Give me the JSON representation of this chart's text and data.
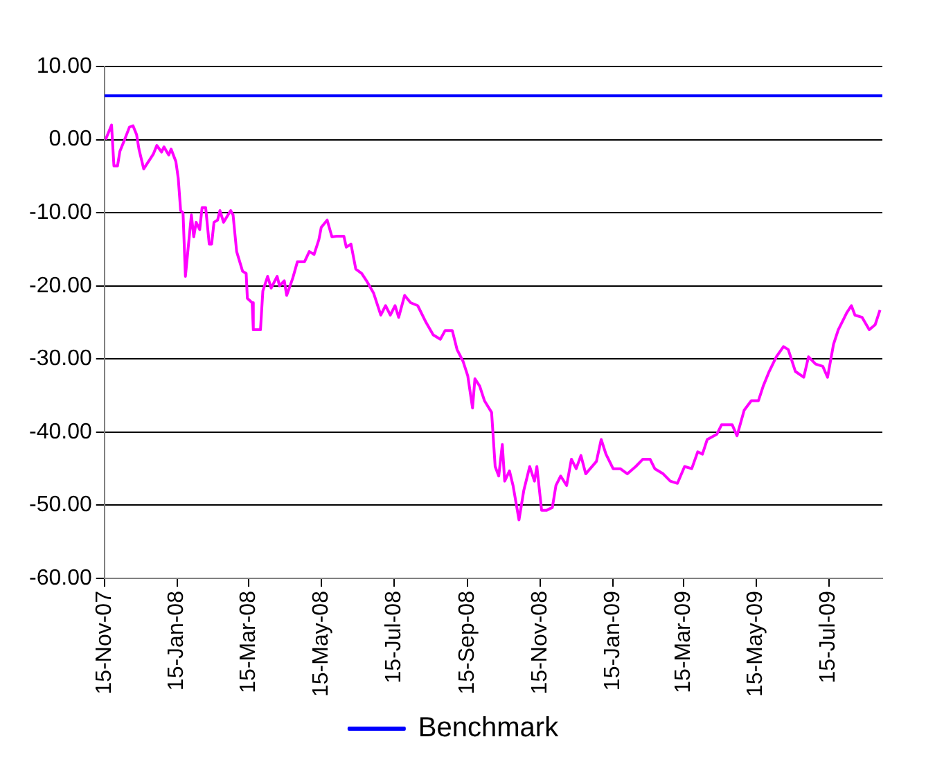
{
  "chart_data": {
    "type": "line",
    "xlim": [
      "2007-11-15",
      "2009-08-29"
    ],
    "xticks": [
      {
        "value": "2007-11-15",
        "label": "15-Nov-07"
      },
      {
        "value": "2008-01-15",
        "label": "15-Jan-08"
      },
      {
        "value": "2008-03-15",
        "label": "15-Mar-08"
      },
      {
        "value": "2008-05-15",
        "label": "15-May-08"
      },
      {
        "value": "2008-07-15",
        "label": "15-Jul-08"
      },
      {
        "value": "2008-09-15",
        "label": "15-Sep-08"
      },
      {
        "value": "2008-11-15",
        "label": "15-Nov-08"
      },
      {
        "value": "2009-01-15",
        "label": "15-Jan-09"
      },
      {
        "value": "2009-03-15",
        "label": "15-Mar-09"
      },
      {
        "value": "2009-05-15",
        "label": "15-May-09"
      },
      {
        "value": "2009-07-15",
        "label": "15-Jul-09"
      }
    ],
    "ylim": [
      -60,
      10
    ],
    "yticks": [
      {
        "value": -60,
        "label": "-60.00"
      },
      {
        "value": -50,
        "label": "-50.00"
      },
      {
        "value": -40,
        "label": "-40.00"
      },
      {
        "value": -30,
        "label": "-30.00"
      },
      {
        "value": -20,
        "label": "-20.00"
      },
      {
        "value": -10,
        "label": "-10.00"
      },
      {
        "value": 0,
        "label": "0.00"
      },
      {
        "value": 10,
        "label": "10.00"
      }
    ],
    "grid": "y",
    "legend": "bottom",
    "marker": "none",
    "line_style": "solid",
    "series": [
      {
        "color": "#ff00ff",
        "x": [
          "2007-11-16",
          "2007-11-21",
          "2007-11-23",
          "2007-11-26",
          "2007-11-28",
          "2007-12-02",
          "2007-12-06",
          "2007-12-09",
          "2007-12-12",
          "2007-12-14",
          "2007-12-18",
          "2007-12-26",
          "2007-12-29",
          "2008-01-02",
          "2008-01-04",
          "2008-01-08",
          "2008-01-10",
          "2008-01-14",
          "2008-01-16",
          "2008-01-18",
          "2008-01-20",
          "2008-01-22",
          "2008-01-27",
          "2008-01-29",
          "2008-01-31",
          "2008-02-03",
          "2008-02-05",
          "2008-02-08",
          "2008-02-11",
          "2008-02-13",
          "2008-02-15",
          "2008-02-18",
          "2008-02-20",
          "2008-02-23",
          "2008-02-29",
          "2008-03-02",
          "2008-03-05",
          "2008-03-10",
          "2008-03-13",
          "2008-03-14",
          "2008-03-18",
          "2008-03-19",
          "2008-03-25",
          "2008-03-27",
          "2008-03-31",
          "2008-04-03",
          "2008-04-08",
          "2008-04-10",
          "2008-04-14",
          "2008-04-16",
          "2008-04-21",
          "2008-04-25",
          "2008-05-01",
          "2008-05-05",
          "2008-05-09",
          "2008-05-13",
          "2008-05-15",
          "2008-05-20",
          "2008-05-24",
          "2008-05-28",
          "2008-06-03",
          "2008-06-05",
          "2008-06-09",
          "2008-06-13",
          "2008-06-18",
          "2008-06-22",
          "2008-06-28",
          "2008-07-04",
          "2008-07-08",
          "2008-07-12",
          "2008-07-16",
          "2008-07-19",
          "2008-07-24",
          "2008-07-29",
          "2008-08-04",
          "2008-08-11",
          "2008-08-17",
          "2008-08-23",
          "2008-08-27",
          "2008-09-02",
          "2008-09-06",
          "2008-09-11",
          "2008-09-15",
          "2008-09-19",
          "2008-09-21",
          "2008-09-25",
          "2008-09-29",
          "2008-10-05",
          "2008-10-08",
          "2008-10-11",
          "2008-10-14",
          "2008-10-16",
          "2008-10-20",
          "2008-10-23",
          "2008-10-28",
          "2008-11-01",
          "2008-11-06",
          "2008-11-10",
          "2008-11-12",
          "2008-11-16",
          "2008-11-20",
          "2008-11-25",
          "2008-11-28",
          "2008-12-02",
          "2008-12-07",
          "2008-12-11",
          "2008-12-15",
          "2008-12-19",
          "2008-12-23",
          "2009-01-01",
          "2009-01-05",
          "2009-01-09",
          "2009-01-15",
          "2009-01-21",
          "2009-01-27",
          "2009-02-03",
          "2009-02-09",
          "2009-02-15",
          "2009-02-19",
          "2009-02-26",
          "2009-03-04",
          "2009-03-10",
          "2009-03-16",
          "2009-03-22",
          "2009-03-27",
          "2009-03-31",
          "2009-04-04",
          "2009-04-12",
          "2009-04-16",
          "2009-04-25",
          "2009-04-29",
          "2009-05-05",
          "2009-05-11",
          "2009-05-17",
          "2009-05-21",
          "2009-05-26",
          "2009-06-01",
          "2009-06-07",
          "2009-06-11",
          "2009-06-17",
          "2009-06-24",
          "2009-06-28",
          "2009-07-04",
          "2009-07-10",
          "2009-07-14",
          "2009-07-19",
          "2009-07-23",
          "2009-07-27",
          "2009-07-30",
          "2009-08-03",
          "2009-08-06",
          "2009-08-12",
          "2009-08-18",
          "2009-08-23",
          "2009-08-27"
        ],
        "values": [
          0,
          2,
          -3.6,
          -3.6,
          -1.6,
          0,
          1.7,
          1.9,
          0.7,
          -1.3,
          -4,
          -2,
          -0.8,
          -1.7,
          -1,
          -2.1,
          -1.3,
          -3,
          -5.3,
          -9.7,
          -10,
          -18.7,
          -10.3,
          -13.3,
          -11.3,
          -12.3,
          -9.3,
          -9.3,
          -14.3,
          -14.3,
          -11.3,
          -11,
          -9.7,
          -11.3,
          -9.7,
          -10.3,
          -15.3,
          -18,
          -18.3,
          -21.7,
          -22.3,
          -26,
          -26,
          -20.7,
          -18.7,
          -20.3,
          -18.7,
          -20,
          -19.3,
          -21.3,
          -19,
          -16.7,
          -16.7,
          -15.3,
          -15.7,
          -13.7,
          -12,
          -11,
          -13.3,
          -13.2,
          -13.2,
          -14.7,
          -14.3,
          -17.7,
          -18.3,
          -19.3,
          -21,
          -24,
          -22.7,
          -24,
          -22.7,
          -24.3,
          -21.3,
          -22.3,
          -22.7,
          -25,
          -26.7,
          -27.3,
          -26.1,
          -26.1,
          -28.7,
          -30.3,
          -32.3,
          -36.7,
          -32.7,
          -33.7,
          -35.7,
          -37.3,
          -44.7,
          -46,
          -41.7,
          -46.7,
          -45.3,
          -47.3,
          -52,
          -48,
          -44.7,
          -46.7,
          -44.7,
          -50.7,
          -50.7,
          -50.3,
          -47.3,
          -46,
          -47.3,
          -43.7,
          -45,
          -43.2,
          -45.7,
          -44,
          -41,
          -43,
          -45,
          -45,
          -45.7,
          -44.7,
          -43.7,
          -43.7,
          -45,
          -45.7,
          -46.7,
          -47,
          -44.7,
          -45,
          -42.7,
          -43,
          -41,
          -40.3,
          -39,
          -39,
          -40.5,
          -37,
          -35.7,
          -35.7,
          -33.7,
          -31.7,
          -29.7,
          -28.3,
          -28.7,
          -31.7,
          -32.5,
          -29.7,
          -30.7,
          -31,
          -32.5,
          -28,
          -26,
          -24.7,
          -23.7,
          -22.7,
          -24,
          -24.3,
          -26,
          -25.3,
          -23.3
        ]
      },
      {
        "name": "Benchmark",
        "color": "#0000ff",
        "x": [
          "2007-11-15",
          "2009-08-29"
        ],
        "values": [
          6,
          6
        ]
      }
    ]
  }
}
